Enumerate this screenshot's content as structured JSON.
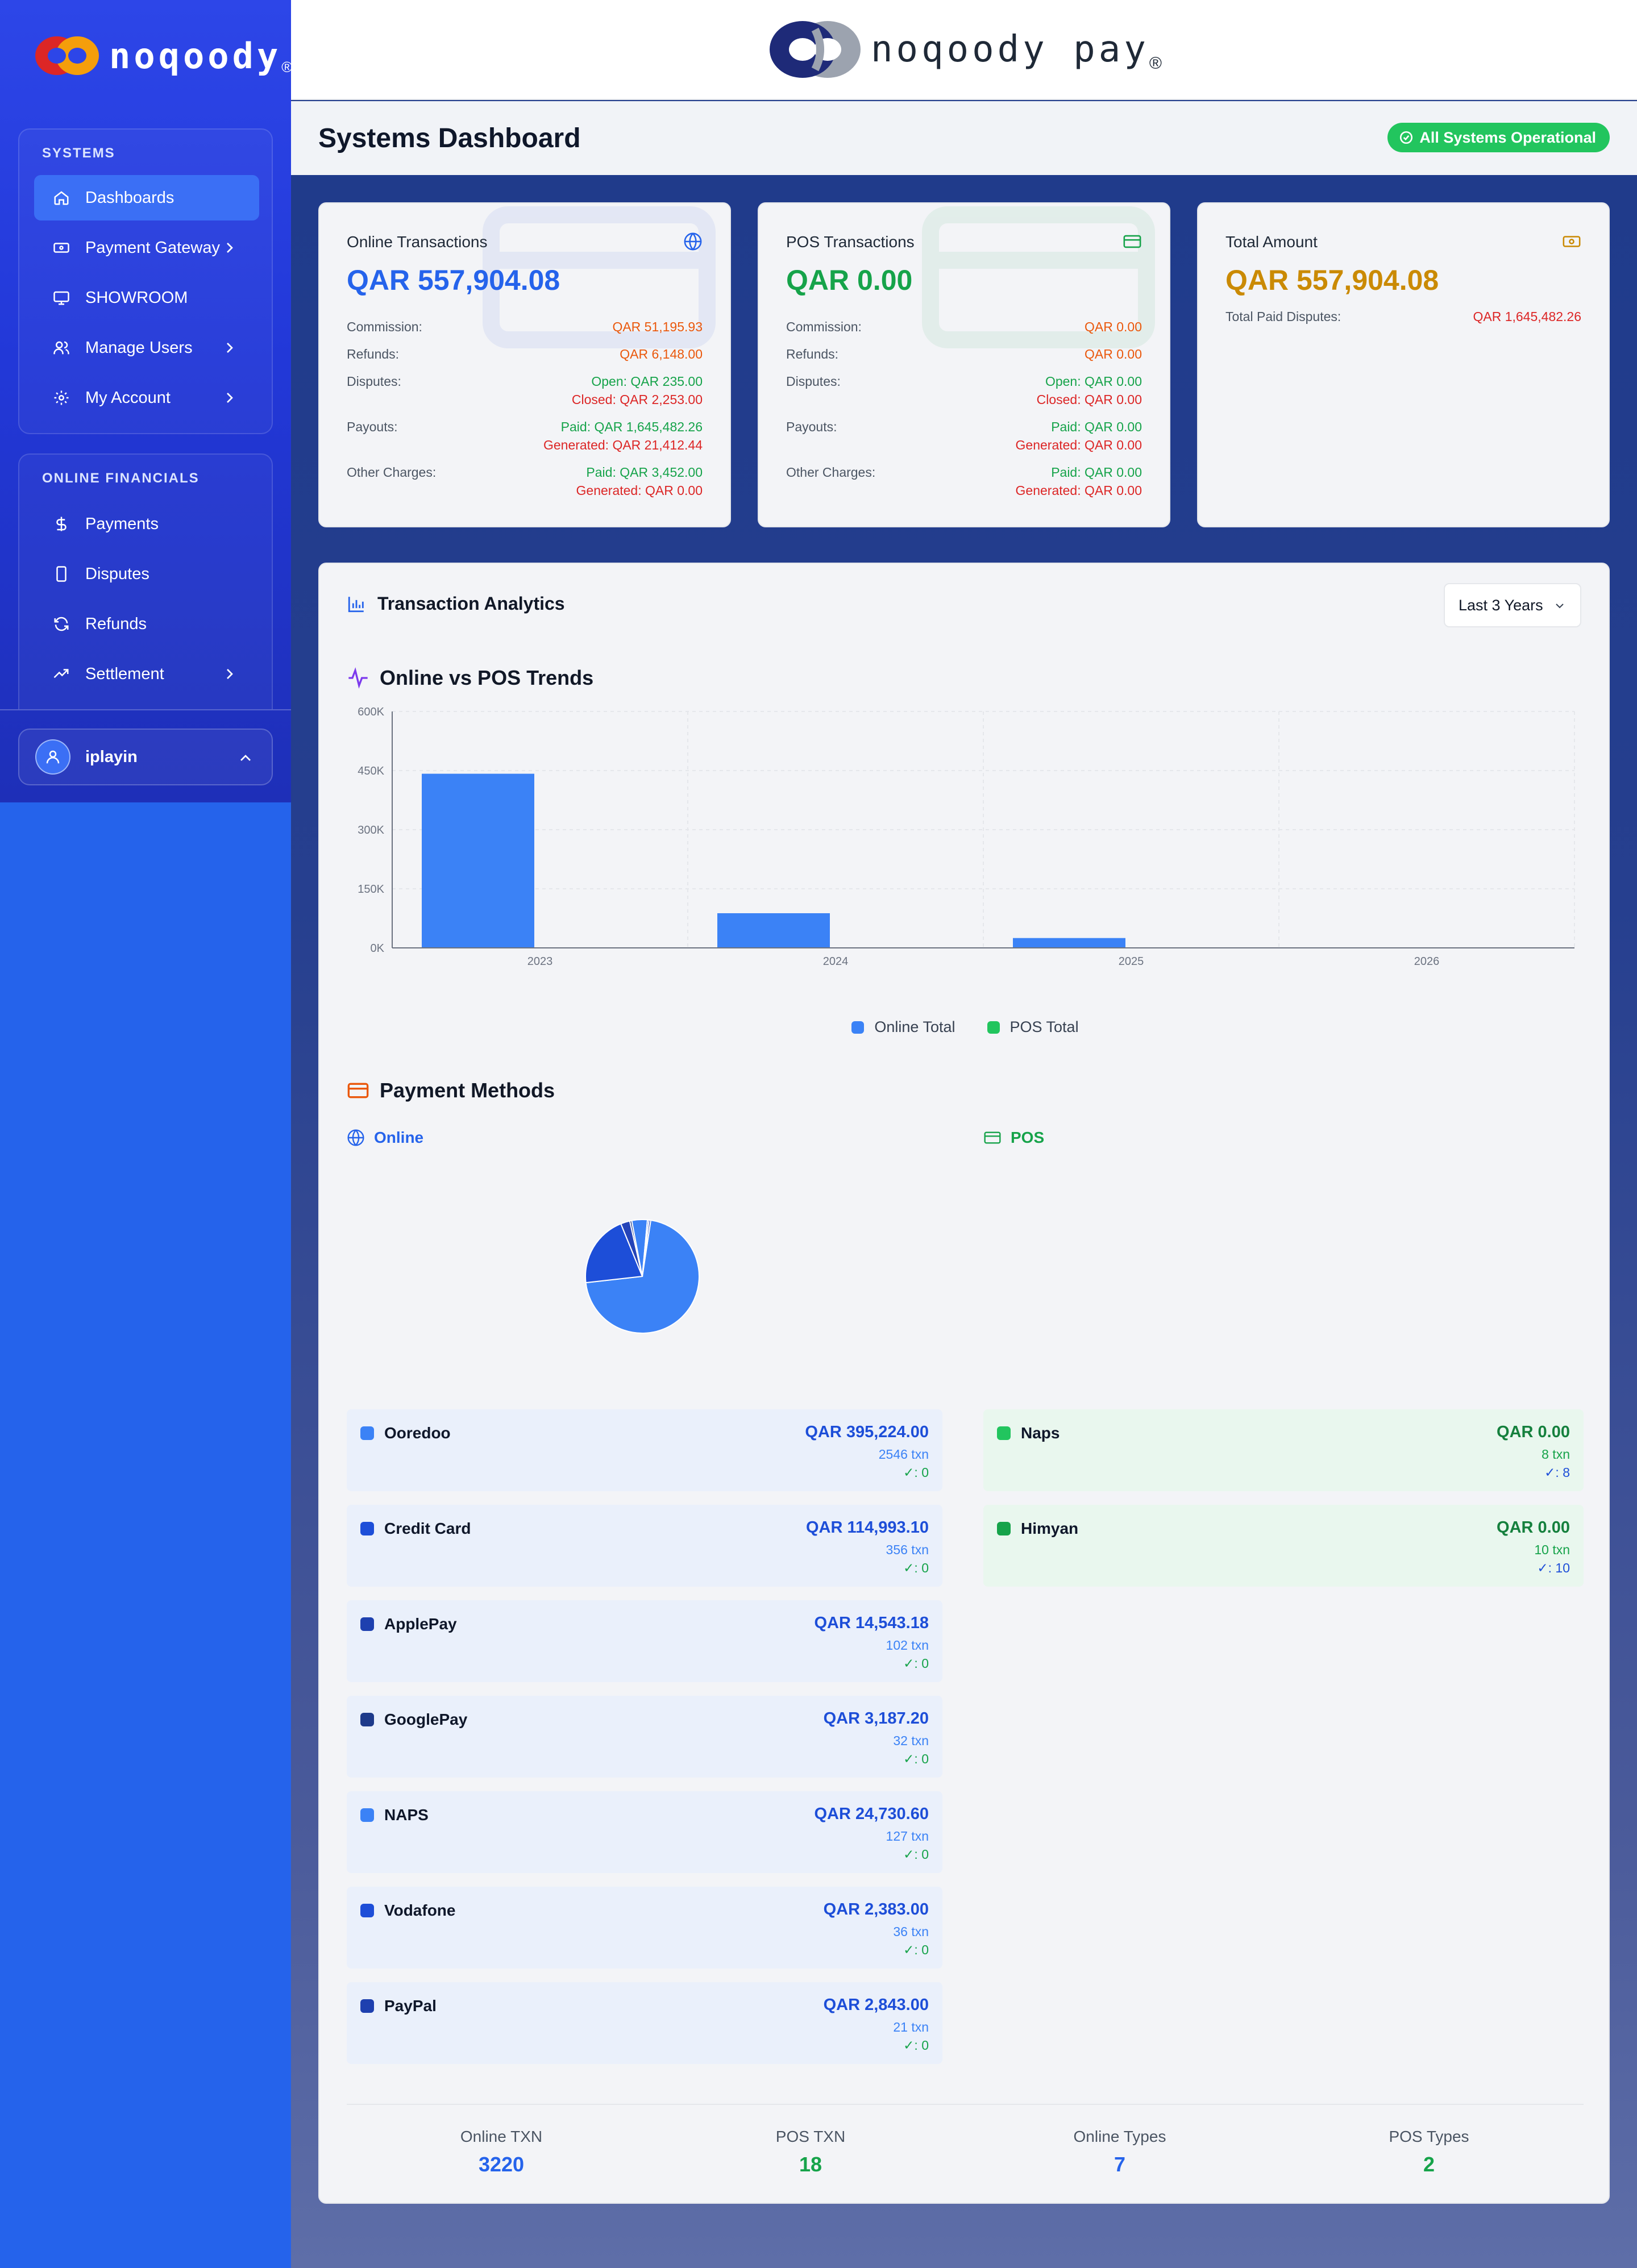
{
  "brand": {
    "name": "noqoody",
    "reg": "®",
    "pay_name": "noqoody pay"
  },
  "sidebar": {
    "systems_heading": "SYSTEMS",
    "systems_items": [
      {
        "label": "Dashboards",
        "icon": "home-icon",
        "active": true
      },
      {
        "label": "Payment Gateway",
        "icon": "gateway-icon",
        "chevron": true
      },
      {
        "label": "SHOWROOM",
        "icon": "monitor-icon"
      },
      {
        "label": "Manage Users",
        "icon": "users-icon",
        "chevron": true
      },
      {
        "label": "My Account",
        "icon": "gear-icon",
        "chevron": true
      }
    ],
    "financials_heading": "ONLINE FINANCIALS",
    "financials_items": [
      {
        "label": "Payments",
        "icon": "dollar-icon"
      },
      {
        "label": "Disputes",
        "icon": "phone-icon"
      },
      {
        "label": "Refunds",
        "icon": "refresh-icon"
      },
      {
        "label": "Settlement",
        "icon": "trending-up-icon",
        "chevron": true
      }
    ],
    "user": {
      "name": "iplayin"
    }
  },
  "header": {
    "title": "Systems Dashboard",
    "status": "All Systems Operational"
  },
  "cards": {
    "online": {
      "title": "Online Transactions",
      "amount": "QAR 557,904.08",
      "commission_label": "Commission:",
      "commission": "QAR 51,195.93",
      "refunds_label": "Refunds:",
      "refunds": "QAR 6,148.00",
      "disputes_label": "Disputes:",
      "disputes_open": "Open: QAR 235.00",
      "disputes_closed": "Closed: QAR 2,253.00",
      "payouts_label": "Payouts:",
      "payouts_paid": "Paid: QAR 1,645,482.26",
      "payouts_generated": "Generated: QAR 21,412.44",
      "other_label": "Other Charges:",
      "other_paid": "Paid: QAR 3,452.00",
      "other_generated": "Generated: QAR 0.00"
    },
    "pos": {
      "title": "POS Transactions",
      "amount": "QAR 0.00",
      "commission_label": "Commission:",
      "commission": "QAR 0.00",
      "refunds_label": "Refunds:",
      "refunds": "QAR 0.00",
      "disputes_label": "Disputes:",
      "disputes_open": "Open: QAR 0.00",
      "disputes_closed": "Closed: QAR 0.00",
      "payouts_label": "Payouts:",
      "payouts_paid": "Paid: QAR 0.00",
      "payouts_generated": "Generated: QAR 0.00",
      "other_label": "Other Charges:",
      "other_paid": "Paid: QAR 0.00",
      "other_generated": "Generated: QAR 0.00"
    },
    "total": {
      "title": "Total Amount",
      "amount": "QAR 557,904.08",
      "disputes_label": "Total Paid Disputes:",
      "disputes": "QAR 1,645,482.26"
    }
  },
  "analytics": {
    "title": "Transaction Analytics",
    "range": "Last 3 Years",
    "trends_title": "Online vs POS Trends",
    "payment_methods_title": "Payment Methods",
    "online_label": "Online",
    "pos_label": "POS"
  },
  "chart_data": {
    "type": "bar",
    "categories": [
      "2023",
      "2024",
      "2025",
      "2026"
    ],
    "series": [
      {
        "name": "Online Total",
        "color": "#3b82f6",
        "values": [
          442000,
          88000,
          25000,
          1000
        ]
      },
      {
        "name": "POS Total",
        "color": "#22c55e",
        "values": [
          0,
          0,
          0,
          0
        ]
      }
    ],
    "ylim": [
      0,
      600000
    ],
    "yticks": [
      0,
      150000,
      300000,
      450000,
      600000
    ],
    "ytick_labels": [
      "0K",
      "150K",
      "300K",
      "450K",
      "600K"
    ],
    "grid": true,
    "legend": "bottom"
  },
  "pie_data": {
    "type": "pie",
    "labels": [
      "Ooredoo",
      "Credit Card",
      "ApplePay",
      "GooglePay",
      "NAPS",
      "Vodafone",
      "PayPal"
    ],
    "values": [
      395224.0,
      114993.1,
      14543.18,
      3187.2,
      24730.6,
      2383.0,
      2843.0
    ],
    "colors": [
      "#3b82f6",
      "#1d4ed8",
      "#2544b8",
      "#1e3a8a",
      "#3b82f6",
      "#1d4ed8",
      "#2544b8"
    ]
  },
  "online_methods": [
    {
      "name": "Ooredoo",
      "amount": "QAR 395,224.00",
      "txn": "2546 txn",
      "ok": "✓: 0",
      "color": "#3b82f6"
    },
    {
      "name": "Credit Card",
      "amount": "QAR 114,993.10",
      "txn": "356 txn",
      "ok": "✓: 0",
      "color": "#1d4ed8"
    },
    {
      "name": "ApplePay",
      "amount": "QAR 14,543.18",
      "txn": "102 txn",
      "ok": "✓: 0",
      "color": "#1e40af"
    },
    {
      "name": "GooglePay",
      "amount": "QAR 3,187.20",
      "txn": "32 txn",
      "ok": "✓: 0",
      "color": "#1e3a8a"
    },
    {
      "name": "NAPS",
      "amount": "QAR 24,730.60",
      "txn": "127 txn",
      "ok": "✓: 0",
      "color": "#3b82f6"
    },
    {
      "name": "Vodafone",
      "amount": "QAR 2,383.00",
      "txn": "36 txn",
      "ok": "✓: 0",
      "color": "#1d4ed8"
    },
    {
      "name": "PayPal",
      "amount": "QAR 2,843.00",
      "txn": "21 txn",
      "ok": "✓: 0",
      "color": "#1e40af"
    }
  ],
  "pos_methods": [
    {
      "name": "Naps",
      "amount": "QAR 0.00",
      "txn": "8 txn",
      "ok": "✓: 8",
      "color": "#22c55e"
    },
    {
      "name": "Himyan",
      "amount": "QAR 0.00",
      "txn": "10 txn",
      "ok": "✓: 10",
      "color": "#16a34a"
    }
  ],
  "summary": [
    {
      "label": "Online TXN",
      "value": "3220",
      "color": "#2563eb"
    },
    {
      "label": "POS TXN",
      "value": "18",
      "color": "#16a34a"
    },
    {
      "label": "Online Types",
      "value": "7",
      "color": "#2563eb"
    },
    {
      "label": "POS Types",
      "value": "2",
      "color": "#16a34a"
    }
  ]
}
